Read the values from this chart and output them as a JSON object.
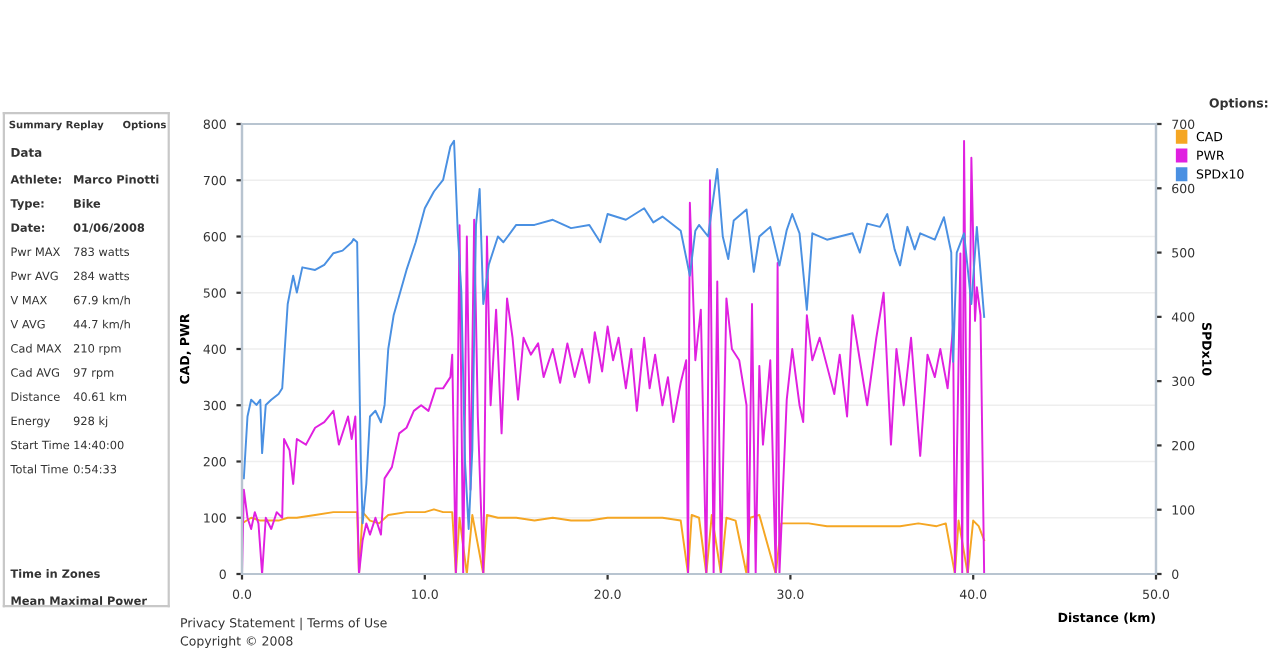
{
  "chart_data": [
    {
      "type": "other",
      "annotations": [
        "Summary",
        "Replay",
        "Options",
        "Data",
        "Athlete:\tMarco Pinotti",
        "Type:\tBike",
        "Date:\t01/06/2008",
        "Pwr MAX\t783 watts",
        "Pwr AVG\t284 watts",
        "V MAX\t67.9 km/h",
        "V AVG\t44.7 km/h",
        "Cad MAX\t210 rpm",
        "Cad AVG\t97 rpm",
        "Distance\t40.61 km",
        "Energy\t928 kj",
        "Start Time\t14:40:00",
        "Total Time\t0:54:33",
        "Time in Zones",
        "Mean Maximal Power"
      ]
    },
    {
      "type": "line",
      "xlabel": "Distance (km)",
      "ylabel": "CAD, PWR",
      "y2label": "SPDx10",
      "xlim": [
        0,
        50
      ],
      "xticks": [
        {
          "value": 0,
          "label": "0.0"
        },
        {
          "value": 10,
          "label": "10.0"
        },
        {
          "value": 20,
          "label": "20.0"
        },
        {
          "value": 30,
          "label": "30.0"
        },
        {
          "value": 40,
          "label": "40.0"
        },
        {
          "value": 50,
          "label": "50.0"
        }
      ],
      "ylim": [
        0,
        800
      ],
      "yticks": [
        0,
        100,
        200,
        300,
        400,
        500,
        600,
        700,
        800
      ],
      "y2lim": [
        0,
        700
      ],
      "y2ticks": [
        0,
        100,
        200,
        300,
        400,
        500,
        600,
        700
      ],
      "grid": "y",
      "legend": "top right",
      "marker": "none",
      "line_style": "solid",
      "annotations": [
        "Options:",
        "Privacy Statement | Terms of Use",
        "Copyright © 2008"
      ],
      "series": [
        {
          "name": "CAD",
          "color": "#f5a623",
          "x": [
            0.0,
            0.5,
            1.0,
            1.5,
            2.0,
            2.5,
            3.0,
            4.0,
            5.0,
            6.0,
            6.3,
            6.4,
            6.6,
            7.0,
            7.5,
            8.0,
            9.0,
            10.0,
            10.5,
            11.0,
            11.5,
            11.7,
            11.9,
            12.3,
            12.6,
            13.2,
            13.4,
            14,
            15,
            16,
            17,
            18,
            19,
            20,
            21,
            22,
            23,
            24,
            24.4,
            24.6,
            25,
            25.4,
            25.7,
            26.2,
            26.5,
            27,
            27.6,
            27.8,
            28.3,
            29.2,
            29.5,
            30,
            31,
            32,
            33,
            34,
            35,
            36,
            37,
            38,
            38.5,
            39.0,
            39.2,
            39.7,
            40,
            40.3,
            40.6
          ],
          "values": [
            90,
            100,
            95,
            95,
            95,
            100,
            100,
            105,
            110,
            110,
            110,
            0,
            110,
            95,
            90,
            105,
            110,
            110,
            115,
            110,
            110,
            0,
            100,
            0,
            105,
            0,
            105,
            100,
            100,
            95,
            100,
            95,
            95,
            100,
            100,
            100,
            100,
            95,
            0,
            105,
            100,
            0,
            105,
            0,
            100,
            95,
            0,
            100,
            105,
            0,
            90,
            90,
            90,
            85,
            85,
            85,
            85,
            85,
            90,
            85,
            90,
            0,
            95,
            0,
            95,
            85,
            60
          ]
        },
        {
          "name": "PWR",
          "color": "#e020e0",
          "x": [
            0.0,
            0.1,
            0.3,
            0.5,
            0.7,
            0.9,
            1.1,
            1.3,
            1.6,
            1.9,
            2.2,
            2.3,
            2.6,
            2.8,
            3.0,
            3.5,
            4.0,
            4.5,
            5.0,
            5.3,
            5.8,
            6.0,
            6.2,
            6.4,
            6.6,
            6.8,
            7.0,
            7.3,
            7.6,
            7.8,
            8.2,
            8.6,
            9.0,
            9.4,
            9.8,
            10.2,
            10.6,
            11.0,
            11.4,
            11.5,
            11.7,
            11.9,
            12.1,
            12.3,
            12.5,
            12.7,
            12.9,
            13.2,
            13.4,
            13.6,
            13.9,
            14.2,
            14.5,
            14.8,
            15.1,
            15.4,
            15.8,
            16.2,
            16.5,
            17.0,
            17.4,
            17.8,
            18.2,
            18.6,
            19.0,
            19.3,
            19.7,
            20.0,
            20.3,
            20.6,
            21.0,
            21.3,
            21.6,
            22.0,
            22.3,
            22.6,
            23.0,
            23.3,
            23.6,
            24.0,
            24.3,
            24.4,
            24.5,
            24.8,
            25.1,
            25.4,
            25.6,
            25.8,
            26.0,
            26.2,
            26.5,
            26.8,
            27.2,
            27.6,
            27.7,
            27.9,
            28.1,
            28.3,
            28.5,
            28.9,
            29.2,
            29.3,
            29.4,
            29.8,
            30.1,
            30.5,
            30.7,
            30.9,
            31.2,
            31.6,
            32.0,
            32.4,
            32.7,
            33.1,
            33.4,
            33.8,
            34.2,
            34.7,
            35.1,
            35.5,
            35.8,
            36.2,
            36.6,
            37.1,
            37.5,
            37.9,
            38.2,
            38.6,
            38.9,
            39.0,
            39.3,
            39.4,
            39.5,
            39.7,
            39.9,
            40.1,
            40.2,
            40.4,
            40.6
          ],
          "values": [
            0,
            150,
            100,
            80,
            110,
            90,
            0,
            100,
            80,
            110,
            100,
            240,
            220,
            160,
            240,
            230,
            260,
            270,
            290,
            230,
            280,
            240,
            280,
            0,
            60,
            90,
            70,
            100,
            70,
            170,
            190,
            250,
            260,
            290,
            300,
            290,
            330,
            330,
            350,
            390,
            0,
            620,
            0,
            600,
            150,
            630,
            280,
            0,
            600,
            300,
            470,
            250,
            490,
            420,
            310,
            420,
            390,
            410,
            350,
            400,
            340,
            410,
            350,
            400,
            340,
            430,
            360,
            440,
            380,
            420,
            330,
            400,
            290,
            420,
            330,
            390,
            300,
            350,
            270,
            340,
            380,
            0,
            660,
            380,
            470,
            0,
            700,
            0,
            520,
            0,
            490,
            400,
            380,
            300,
            0,
            480,
            0,
            370,
            230,
            380,
            0,
            553,
            0,
            310,
            400,
            300,
            270,
            460,
            380,
            420,
            370,
            320,
            390,
            280,
            460,
            380,
            300,
            420,
            500,
            230,
            400,
            300,
            420,
            210,
            390,
            350,
            400,
            330,
            440,
            0,
            570,
            0,
            770,
            0,
            740,
            450,
            510,
            460,
            0
          ]
        },
        {
          "name": "SPDx10",
          "color": "#4a90e2",
          "axis": "y2",
          "x": [
            0.1,
            0.3,
            0.5,
            0.8,
            1.0,
            1.1,
            1.3,
            1.6,
            2.0,
            2.2,
            2.5,
            2.8,
            3.0,
            3.3,
            4.0,
            4.5,
            5.0,
            5.5,
            6.0,
            6.1,
            6.3,
            6.5,
            6.6,
            6.8,
            7.0,
            7.3,
            7.6,
            7.8,
            8.0,
            8.3,
            9.0,
            9.5,
            10.0,
            10.5,
            11.0,
            11.4,
            11.6,
            11.8,
            12.0,
            12.2,
            12.4,
            12.6,
            12.8,
            13.0,
            13.2,
            13.5,
            14.0,
            14.3,
            15,
            16,
            17,
            18,
            19,
            19.6,
            20,
            21,
            22,
            22.5,
            23,
            24,
            24.5,
            24.8,
            25,
            25.5,
            26.0,
            26.3,
            26.6,
            26.9,
            27.6,
            28.0,
            28.3,
            28.9,
            29.4,
            29.8,
            30.1,
            30.5,
            30.9,
            31.2,
            32.0,
            32.7,
            33.4,
            33.8,
            34.2,
            34.9,
            35.3,
            35.7,
            36.0,
            36.4,
            36.8,
            37.1,
            37.9,
            38.4,
            38.8,
            38.9,
            39.1,
            39.5,
            39.9,
            40.2,
            40.6
          ],
          "values": [
            149,
            245,
            271,
            263,
            271,
            188,
            263,
            271,
            280,
            289,
            420,
            464,
            438,
            477,
            473,
            481,
            499,
            503,
            516,
            521,
            516,
            175,
            79,
            140,
            245,
            254,
            236,
            263,
            350,
            403,
            473,
            516,
            569,
            595,
            613,
            665,
            674,
            534,
            438,
            175,
            70,
            193,
            543,
            599,
            420,
            481,
            525,
            516,
            543,
            543,
            551,
            538,
            543,
            516,
            560,
            551,
            569,
            547,
            556,
            534,
            464,
            534,
            543,
            525,
            630,
            525,
            490,
            550,
            567,
            470,
            525,
            540,
            480,
            535,
            560,
            530,
            411,
            530,
            520,
            525,
            530,
            500,
            545,
            540,
            560,
            505,
            480,
            540,
            505,
            530,
            520,
            555,
            500,
            330,
            500,
            530,
            420,
            540,
            400
          ]
        }
      ]
    }
  ]
}
